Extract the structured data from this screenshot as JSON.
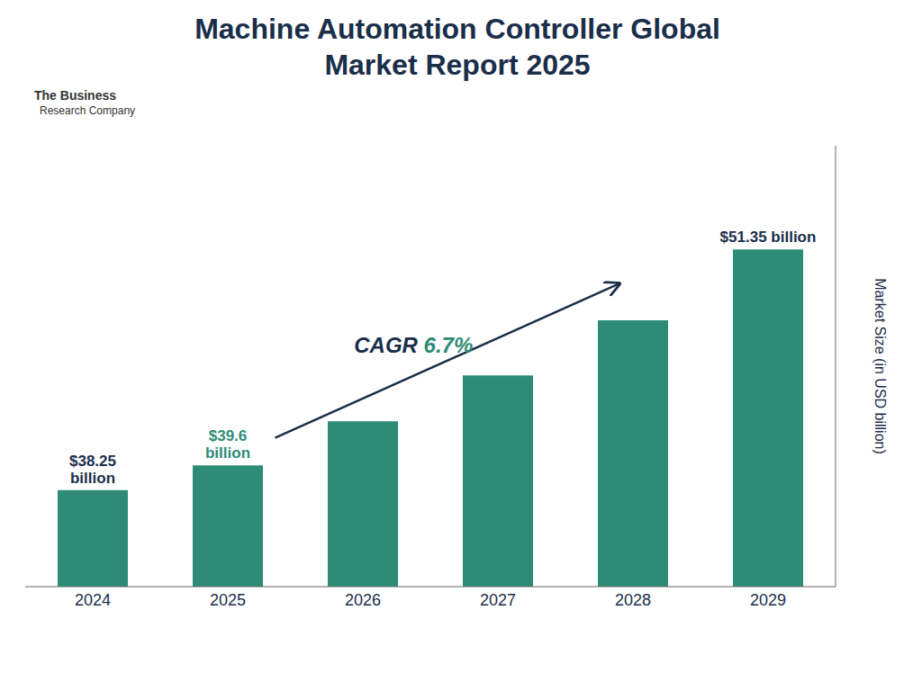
{
  "chart_data": {
    "type": "bar",
    "title": "Machine Automation Controller Global\nMarket Report 2025",
    "y_label": "Market Size (in USD billion)",
    "categories": [
      "2024",
      "2025",
      "2026",
      "2027",
      "2028",
      "2029"
    ],
    "values": [
      38.25,
      39.6,
      42.0,
      44.5,
      47.5,
      51.35
    ],
    "color": "#2d8b76",
    "ylim": [
      33,
      57
    ],
    "grid": false,
    "tick_labels": "x",
    "annotations": [
      {
        "text": "$38.25\nbillion",
        "color": "#1a2e4a",
        "category": "2024"
      },
      {
        "text": "$39.6\nbillion",
        "color": "#2d8b76",
        "category": "2025"
      },
      {
        "text": "$51.35 billion",
        "color": "#1a2e4a",
        "category": "2029"
      },
      {
        "parts": [
          {
            "text": "CAGR ",
            "color": "#1a2e4a"
          },
          {
            "text": "6.7%",
            "color": "#2d8b76"
          }
        ],
        "arrow": {
          "from": "2025",
          "to": "2028",
          "color": "#1a2e4a"
        }
      },
      {
        "text": "The Business",
        "color": "#333333"
      },
      {
        "text": "Research Company",
        "color": "#333333"
      }
    ]
  }
}
